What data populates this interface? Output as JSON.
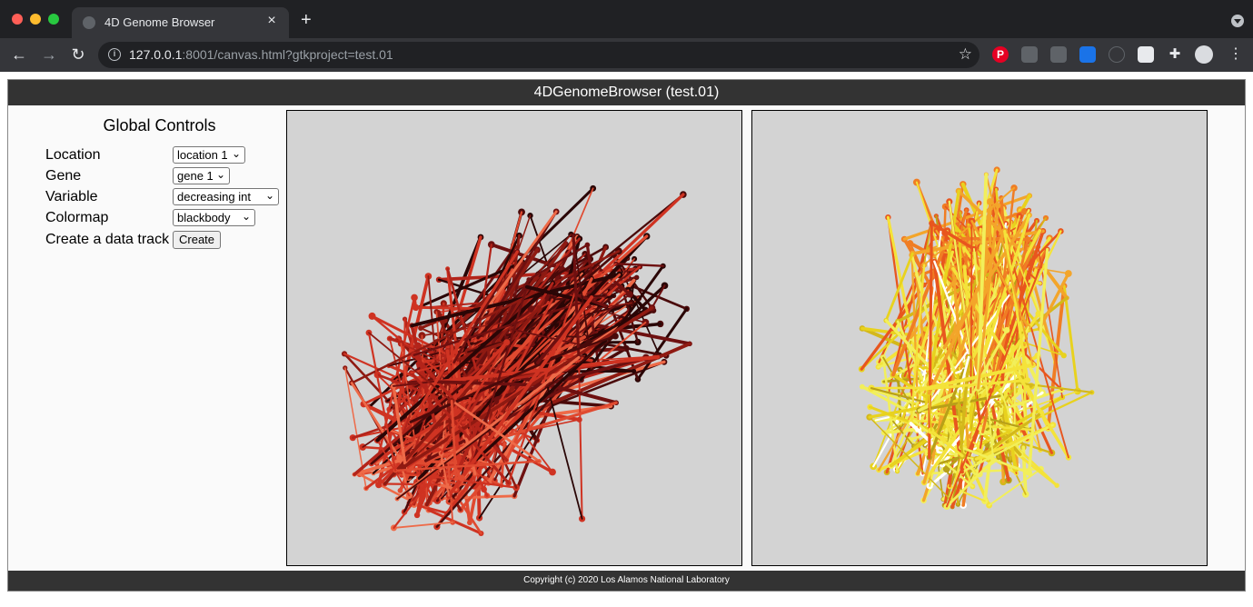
{
  "browser": {
    "tab_title": "4D Genome Browser",
    "tab_close": "×",
    "new_tab": "+",
    "url_host": "127.0.0.1",
    "url_rest": ":8001/canvas.html?gtkproject=test.01",
    "nav_back": "←",
    "nav_forward": "→",
    "nav_reload": "↻",
    "bookmark_star": "☆",
    "menu_dots": "⋮",
    "info": "i",
    "extensions": [
      "pinterest-icon",
      "layers-icon",
      "extension-icon",
      "chart-icon",
      "info-icon",
      "qr-icon",
      "puzzle-icon",
      "avatar"
    ]
  },
  "app": {
    "header_title": "4DGenomeBrowser (test.01)",
    "footer": "Copyright (c) 2020 Los Alamos National Laboratory"
  },
  "controls": {
    "title": "Global Controls",
    "location_label": "Location",
    "location_value": "location 1",
    "gene_label": "Gene",
    "gene_value": "gene 1",
    "variable_label": "Variable",
    "variable_value": "decreasing int",
    "colormap_label": "Colormap",
    "colormap_value": "blackbody",
    "track_label": "Create a data track",
    "create_button": "Create"
  },
  "viewports": {
    "background": "#d3d3d3",
    "left_palette": [
      "#2a0606",
      "#4a0a0a",
      "#6e1010",
      "#8f1a12",
      "#b3241a",
      "#cf3322",
      "#e04a30",
      "#ee6a48"
    ],
    "right_palette": [
      "#f2ef5a",
      "#f4e33a",
      "#e8d21e",
      "#d4b81a",
      "#f3a52a",
      "#f07d24",
      "#e8561e",
      "#ffffff",
      "#b8a018"
    ]
  }
}
